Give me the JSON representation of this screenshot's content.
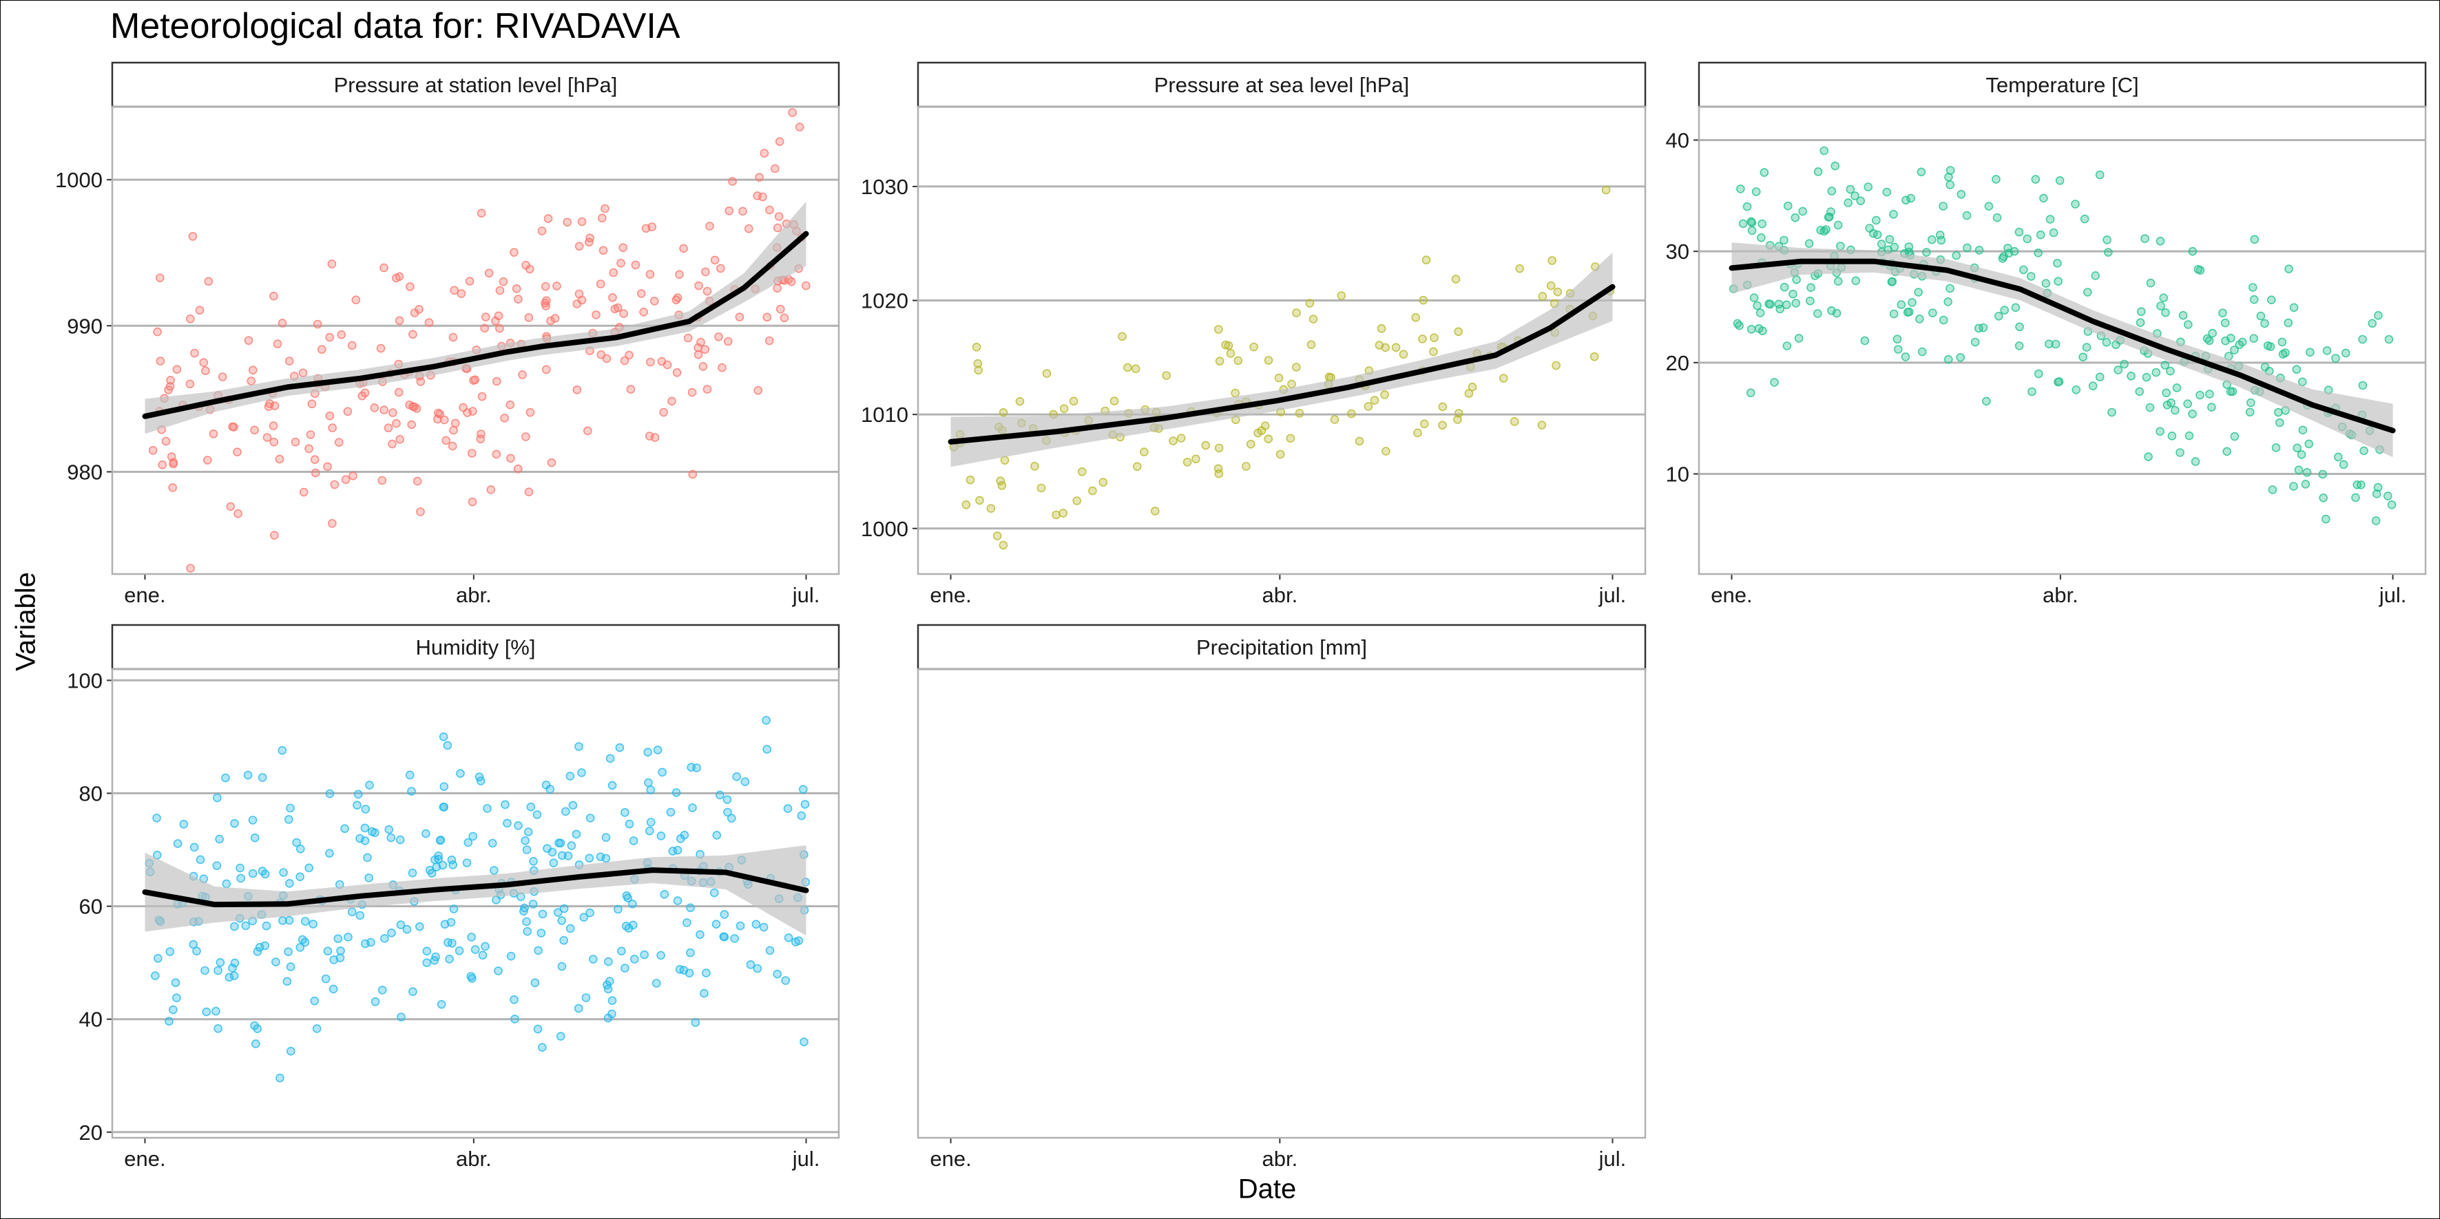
{
  "title": "Meteorological data for: RIVADAVIA",
  "xlabel": "Date",
  "ylabel": "Variable",
  "colors": {
    "pressure_station": "#F8766D",
    "pressure_sea": "#B7B728",
    "temperature": "#22C08A",
    "humidity": "#22B8EA",
    "precipitation": "#C77CFF",
    "smooth_line": "#000000",
    "ribbon": "#BEBEBE",
    "grid": "#B3B3B3"
  },
  "chart_data": [
    {
      "type": "scatter",
      "title": "Pressure at station level [hPa]",
      "xlim": [
        1,
        182
      ],
      "ylim": [
        973,
        1005
      ],
      "yticks": [
        980,
        990,
        1000
      ],
      "xticks": [
        {
          "x": 1,
          "label": "ene."
        },
        {
          "x": 91,
          "label": "abr."
        },
        {
          "x": 182,
          "label": "jul."
        }
      ],
      "grid": "horizontal",
      "scatter": {
        "n": 300,
        "seed": 11,
        "center": [
          [
            1,
            984
          ],
          [
            40,
            985
          ],
          [
            90,
            987
          ],
          [
            120,
            990
          ],
          [
            150,
            990
          ],
          [
            182,
            997
          ]
        ],
        "spread": 5.5
      },
      "smooth": {
        "x": [
          1,
          20,
          40,
          60,
          80,
          100,
          110,
          130,
          150,
          165,
          182
        ],
        "y": [
          983.8,
          984.8,
          985.8,
          986.4,
          987.2,
          988.2,
          988.6,
          989.2,
          990.3,
          992.6,
          996.3
        ],
        "band": [
          1.2,
          0.7,
          0.6,
          0.6,
          0.6,
          0.6,
          0.6,
          0.6,
          0.7,
          1.0,
          2.2
        ]
      }
    },
    {
      "type": "scatter",
      "title": "Pressure at sea level [hPa]",
      "xlim": [
        1,
        182
      ],
      "ylim": [
        996,
        1037
      ],
      "yticks": [
        1000,
        1010,
        1020,
        1030
      ],
      "xticks": [
        {
          "x": 1,
          "label": "ene."
        },
        {
          "x": 91,
          "label": "abr."
        },
        {
          "x": 182,
          "label": "jul."
        }
      ],
      "grid": "horizontal",
      "scatter": {
        "n": 155,
        "seed": 23,
        "center": [
          [
            1,
            1007.5
          ],
          [
            60,
            1009
          ],
          [
            100,
            1012
          ],
          [
            140,
            1015
          ],
          [
            182,
            1021
          ]
        ],
        "spread": 5.5
      },
      "smooth": {
        "x": [
          1,
          30,
          60,
          90,
          110,
          130,
          150,
          165,
          182
        ],
        "y": [
          1007.6,
          1008.5,
          1009.7,
          1011.2,
          1012.4,
          1013.8,
          1015.2,
          1017.6,
          1021.2
        ],
        "band": [
          2.2,
          1.4,
          1.0,
          0.9,
          0.9,
          1.0,
          1.2,
          1.6,
          3.0
        ]
      }
    },
    {
      "type": "scatter",
      "title": "Temperature [C]",
      "xlim": [
        1,
        182
      ],
      "ylim": [
        1,
        43
      ],
      "yticks": [
        10,
        20,
        30,
        40
      ],
      "xticks": [
        {
          "x": 1,
          "label": "ene."
        },
        {
          "x": 91,
          "label": "abr."
        },
        {
          "x": 182,
          "label": "jul."
        }
      ],
      "grid": "horizontal",
      "scatter": {
        "n": 330,
        "seed": 37,
        "center": [
          [
            1,
            28
          ],
          [
            40,
            29
          ],
          [
            80,
            27
          ],
          [
            110,
            22
          ],
          [
            140,
            19
          ],
          [
            182,
            14
          ]
        ],
        "spread": 6.5
      },
      "smooth": {
        "x": [
          1,
          20,
          40,
          60,
          80,
          100,
          120,
          140,
          160,
          182
        ],
        "y": [
          28.5,
          29.1,
          29.1,
          28.3,
          26.6,
          23.7,
          21.2,
          18.9,
          16.2,
          13.9
        ],
        "band": [
          2.3,
          1.2,
          1.0,
          1.0,
          1.0,
          1.0,
          1.0,
          1.1,
          1.4,
          2.4
        ]
      }
    },
    {
      "type": "scatter",
      "title": "Humidity [%]",
      "xlim": [
        1,
        182
      ],
      "ylim": [
        19,
        102
      ],
      "yticks": [
        20,
        40,
        60,
        80,
        100
      ],
      "xticks": [
        {
          "x": 1,
          "label": "ene."
        },
        {
          "x": 91,
          "label": "abr."
        },
        {
          "x": 182,
          "label": "jul."
        }
      ],
      "grid": "horizontal",
      "scatter": {
        "n": 360,
        "seed": 53,
        "center": [
          [
            1,
            62
          ],
          [
            40,
            60
          ],
          [
            90,
            63
          ],
          [
            140,
            66
          ],
          [
            182,
            63
          ]
        ],
        "spread": 17
      },
      "smooth": {
        "x": [
          1,
          20,
          40,
          60,
          80,
          100,
          120,
          140,
          160,
          182
        ],
        "y": [
          62.5,
          60.3,
          60.4,
          61.8,
          62.9,
          63.8,
          65.2,
          66.4,
          66.0,
          62.8
        ],
        "band": [
          7.0,
          3.2,
          2.2,
          2.0,
          2.0,
          2.0,
          2.1,
          2.3,
          3.0,
          8.0
        ]
      }
    },
    {
      "type": "scatter",
      "title": "Precipitation [mm]",
      "xlim": [
        1,
        182
      ],
      "ylim": [
        0,
        1
      ],
      "yticks": [],
      "xticks": [
        {
          "x": 1,
          "label": "ene."
        },
        {
          "x": 91,
          "label": "abr."
        },
        {
          "x": 182,
          "label": "jul."
        }
      ],
      "grid": "none",
      "scatter": {
        "n": 0,
        "seed": 1,
        "center": [
          [
            1,
            0.5
          ],
          [
            182,
            0.5
          ]
        ],
        "spread": 0
      },
      "smooth": null
    }
  ]
}
